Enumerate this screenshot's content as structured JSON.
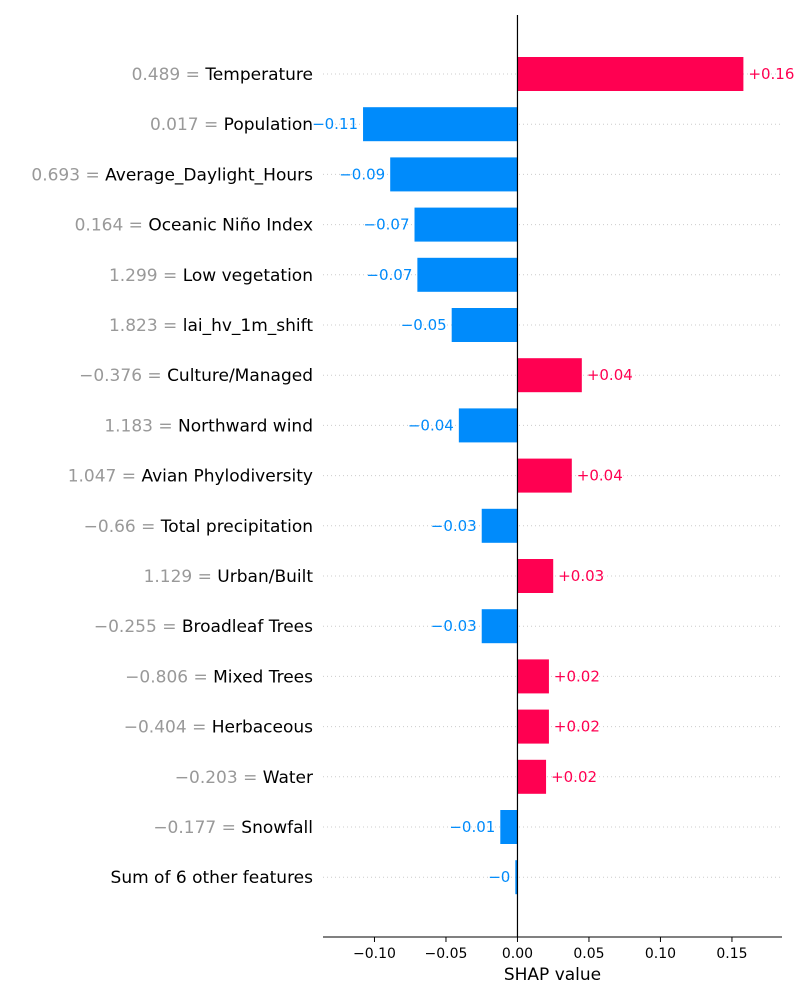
{
  "chart_data": {
    "type": "bar",
    "orientation": "horizontal",
    "xlabel": "SHAP value",
    "xlim": [
      -0.136,
      0.185
    ],
    "xticks": [
      -0.1,
      -0.05,
      0.0,
      0.05,
      0.1,
      0.15
    ],
    "xtick_labels": [
      "−0.10",
      "−0.05",
      "0.00",
      "0.05",
      "0.10",
      "0.15"
    ],
    "grid": "horizontal-dotted",
    "colors": {
      "positive": "#ff0051",
      "negative": "#008bfb"
    },
    "features": [
      {
        "value_text": "0.489",
        "name": "Temperature",
        "shap": 0.158,
        "label": "+0.16"
      },
      {
        "value_text": "0.017",
        "name": "Population",
        "shap": -0.108,
        "label": "−0.11"
      },
      {
        "value_text": "0.693",
        "name": "Average_Daylight_Hours",
        "shap": -0.089,
        "label": "−0.09"
      },
      {
        "value_text": "0.164",
        "name": "Oceanic Niño Index",
        "shap": -0.072,
        "label": "−0.07"
      },
      {
        "value_text": "1.299",
        "name": "Low vegetation",
        "shap": -0.07,
        "label": "−0.07"
      },
      {
        "value_text": "1.823",
        "name": "lai_hv_1m_shift",
        "shap": -0.046,
        "label": "−0.05"
      },
      {
        "value_text": "−0.376",
        "name": "Culture/Managed",
        "shap": 0.045,
        "label": "+0.04"
      },
      {
        "value_text": "1.183",
        "name": "Northward wind",
        "shap": -0.041,
        "label": "−0.04"
      },
      {
        "value_text": "1.047",
        "name": "Avian Phylodiversity",
        "shap": 0.038,
        "label": "+0.04"
      },
      {
        "value_text": "−0.66",
        "name": "Total precipitation",
        "shap": -0.025,
        "label": "−0.03"
      },
      {
        "value_text": "1.129",
        "name": "Urban/Built",
        "shap": 0.025,
        "label": "+0.03"
      },
      {
        "value_text": "−0.255",
        "name": "Broadleaf Trees",
        "shap": -0.025,
        "label": "−0.03"
      },
      {
        "value_text": "−0.806",
        "name": "Mixed Trees",
        "shap": 0.022,
        "label": "+0.02"
      },
      {
        "value_text": "−0.404",
        "name": "Herbaceous",
        "shap": 0.022,
        "label": "+0.02"
      },
      {
        "value_text": "−0.203",
        "name": "Water",
        "shap": 0.02,
        "label": "+0.02"
      },
      {
        "value_text": "−0.177",
        "name": "Snowfall",
        "shap": -0.012,
        "label": "−0.01"
      },
      {
        "value_text": "",
        "name": "Sum of 6 other features",
        "shap": -0.0015,
        "label": "−0"
      }
    ]
  }
}
